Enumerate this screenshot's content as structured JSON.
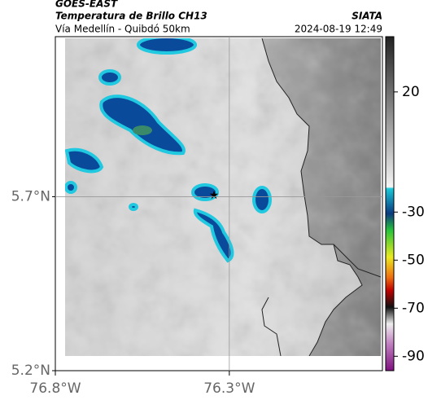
{
  "header": {
    "source": "GOES-EAST",
    "title": "Temperatura de Brillo CH13",
    "subtitle": "Vía Medellín - Quibdó 50km",
    "brand": "SIATA",
    "timestamp": "2024-08-19 12:49"
  },
  "map": {
    "xlim": [
      -76.8,
      -75.86
    ],
    "ylim": [
      5.2,
      6.16
    ],
    "xticks": [
      {
        "value": -76.8,
        "label": "76.8°W"
      },
      {
        "value": -76.3,
        "label": "76.3°W"
      }
    ],
    "yticks": [
      {
        "value": 5.2,
        "label": "5.2°N"
      },
      {
        "value": 5.7,
        "label": "5.7°N"
      }
    ],
    "grid": true
  },
  "colorbar": {
    "lim": [
      -96,
      43
    ],
    "ticks": [
      20,
      -30,
      -50,
      -70,
      -90
    ]
  }
}
